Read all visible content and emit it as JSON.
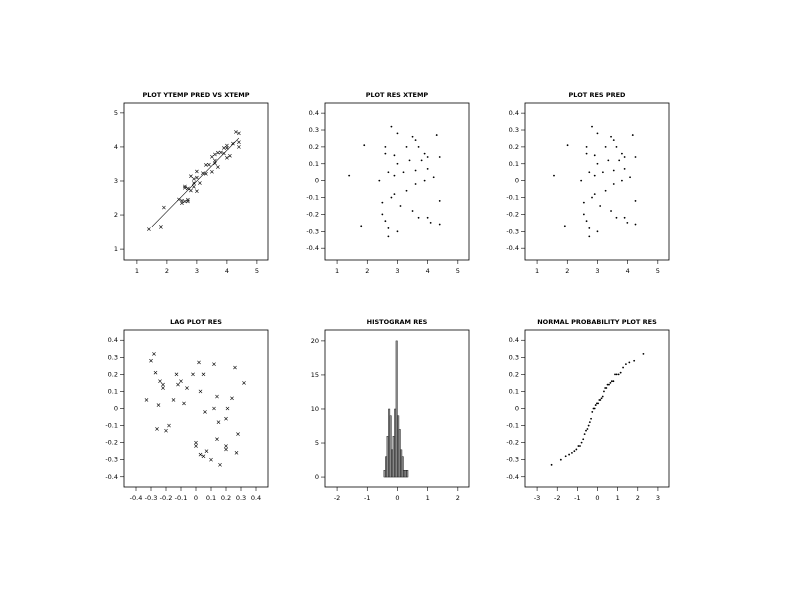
{
  "chart_data": [
    {
      "type": "scatter",
      "title": "PLOT YTEMP PRED VS XTEMP",
      "marker": "x",
      "x": [
        1.4,
        1.8,
        1.9,
        2.4,
        2.5,
        2.5,
        2.6,
        2.6,
        2.6,
        2.7,
        2.7,
        2.7,
        2.8,
        2.9,
        2.9,
        2.9,
        3.0,
        3.0,
        3.0,
        3.1,
        3.2,
        3.3,
        3.3,
        3.4,
        3.5,
        3.6,
        3.6,
        3.6,
        3.7,
        3.7,
        3.8,
        3.9,
        4.0,
        4.0,
        4.0,
        4.1,
        4.2,
        4.3,
        4.4,
        4.4,
        4.4,
        3.5,
        2.8,
        3.9
      ],
      "values": [
        1.59,
        1.65,
        2.22,
        2.46,
        2.35,
        2.42,
        2.84,
        2.4,
        2.8,
        2.4,
        2.78,
        2.45,
        3.14,
        3.06,
        2.83,
        2.94,
        3.1,
        2.7,
        3.28,
        2.94,
        3.23,
        3.47,
        3.21,
        3.48,
        3.71,
        3.78,
        3.6,
        3.52,
        3.83,
        3.41,
        3.84,
        3.81,
        3.68,
        4.04,
        3.97,
        3.74,
        4.1,
        4.44,
        4.0,
        4.14,
        4.4,
        3.27,
        2.72,
        3.97
      ],
      "line_x": [
        1.5,
        4.4
      ],
      "line_values": [
        1.65,
        4.26
      ],
      "xlim": [
        0.57,
        5.37
      ],
      "ylim": [
        0.68,
        5.29
      ],
      "xticks": [
        1,
        2,
        3,
        4,
        5
      ],
      "yticks": [
        1,
        2,
        3,
        4,
        5
      ]
    },
    {
      "type": "scatter",
      "title": "PLOT RES XTEMP",
      "marker": "dot",
      "x": [
        1.4,
        1.8,
        1.9,
        2.4,
        2.5,
        2.5,
        2.6,
        2.6,
        2.6,
        2.7,
        2.7,
        2.7,
        2.8,
        2.9,
        2.9,
        2.9,
        3.0,
        3.0,
        3.0,
        3.1,
        3.2,
        3.3,
        3.3,
        3.4,
        3.5,
        3.6,
        3.6,
        3.6,
        3.7,
        3.7,
        3.8,
        3.9,
        4.0,
        4.0,
        4.0,
        4.1,
        4.2,
        4.3,
        4.4,
        4.4,
        4.4,
        3.5,
        2.8,
        3.9
      ],
      "values": [
        0.03,
        -0.27,
        0.21,
        0.0,
        -0.2,
        -0.13,
        0.2,
        -0.24,
        0.16,
        -0.33,
        0.05,
        -0.28,
        0.32,
        0.15,
        -0.08,
        0.03,
        0.1,
        -0.3,
        0.28,
        -0.15,
        0.05,
        0.2,
        -0.06,
        0.12,
        0.26,
        0.24,
        0.06,
        -0.02,
        0.2,
        -0.22,
        0.12,
        0.0,
        -0.22,
        0.14,
        0.07,
        -0.25,
        0.02,
        0.27,
        -0.26,
        -0.12,
        0.14,
        -0.18,
        -0.1,
        0.16
      ],
      "xlim": [
        0.6,
        5.37
      ],
      "ylim": [
        -0.47,
        0.46
      ],
      "xticks": [
        1,
        2,
        3,
        4,
        5
      ],
      "yticks": [
        -0.4,
        -0.3,
        -0.2,
        -0.1,
        0,
        0.1,
        0.2,
        0.3,
        0.4
      ]
    },
    {
      "type": "scatter",
      "title": "PLOT RES PRED",
      "marker": "dot",
      "x": [
        1.56,
        1.92,
        2.01,
        2.46,
        2.55,
        2.55,
        2.64,
        2.64,
        2.64,
        2.73,
        2.73,
        2.73,
        2.82,
        2.91,
        2.91,
        2.91,
        3.0,
        3.0,
        3.0,
        3.09,
        3.18,
        3.27,
        3.27,
        3.36,
        3.45,
        3.54,
        3.54,
        3.54,
        3.63,
        3.63,
        3.72,
        3.81,
        3.9,
        3.9,
        3.9,
        3.99,
        4.08,
        4.17,
        4.26,
        4.26,
        4.26,
        3.45,
        2.82,
        3.81
      ],
      "values": [
        0.03,
        -0.27,
        0.21,
        0.0,
        -0.2,
        -0.13,
        0.2,
        -0.24,
        0.16,
        -0.33,
        0.05,
        -0.28,
        0.32,
        0.15,
        -0.08,
        0.03,
        0.1,
        -0.3,
        0.28,
        -0.15,
        0.05,
        0.2,
        -0.06,
        0.12,
        0.26,
        0.24,
        0.06,
        -0.02,
        0.2,
        -0.22,
        0.12,
        0.0,
        -0.22,
        0.14,
        0.07,
        -0.25,
        0.02,
        0.27,
        -0.26,
        -0.12,
        0.14,
        -0.18,
        -0.1,
        0.16
      ],
      "xlim": [
        0.6,
        5.37
      ],
      "ylim": [
        -0.47,
        0.46
      ],
      "xticks": [
        1,
        2,
        3,
        4,
        5
      ],
      "yticks": [
        -0.4,
        -0.3,
        -0.2,
        -0.1,
        0,
        0.1,
        0.2,
        0.3,
        0.4
      ]
    },
    {
      "type": "scatter",
      "title": "LAG PLOT RES",
      "marker": "x",
      "x": [
        0.03,
        -0.27,
        0.21,
        0.0,
        -0.2,
        -0.13,
        0.2,
        -0.24,
        0.16,
        -0.33,
        0.05,
        -0.28,
        0.32,
        0.15,
        -0.08,
        0.03,
        0.1,
        -0.3,
        0.28,
        -0.15,
        0.05,
        0.2,
        -0.06,
        0.12,
        0.26,
        0.24,
        0.06,
        -0.02,
        0.2,
        -0.22,
        0.12,
        0.0,
        -0.22,
        0.14,
        0.07,
        -0.25,
        0.02,
        0.27,
        -0.26,
        -0.12,
        0.14,
        -0.18,
        -0.1
      ],
      "values": [
        -0.27,
        0.21,
        0.0,
        -0.2,
        -0.13,
        0.2,
        -0.24,
        0.16,
        -0.33,
        0.05,
        -0.28,
        0.32,
        0.15,
        -0.08,
        0.03,
        0.1,
        -0.3,
        0.28,
        -0.15,
        0.05,
        0.2,
        -0.06,
        0.12,
        0.26,
        0.24,
        0.06,
        -0.02,
        0.2,
        -0.22,
        0.12,
        0.0,
        -0.22,
        0.14,
        0.07,
        -0.25,
        0.02,
        0.27,
        -0.26,
        -0.12,
        0.14,
        -0.18,
        -0.1,
        0.16
      ],
      "xlim": [
        -0.48,
        0.48
      ],
      "ylim": [
        -0.46,
        0.46
      ],
      "xticks": [
        -0.4,
        -0.3,
        -0.2,
        -0.1,
        0,
        0.1,
        0.2,
        0.3,
        0.4
      ],
      "yticks": [
        -0.4,
        -0.3,
        -0.2,
        -0.1,
        0,
        0.1,
        0.2,
        0.3,
        0.4
      ]
    },
    {
      "type": "histogram",
      "title": "HISTOGRAM RES",
      "bins": [
        -0.45,
        -0.4,
        -0.35,
        -0.3,
        -0.25,
        -0.2,
        -0.15,
        -0.1,
        -0.05,
        0,
        0.05,
        0.1,
        0.15,
        0.2,
        0.25,
        0.3,
        0.35
      ],
      "values": [
        1,
        3,
        6,
        10,
        9,
        4,
        6,
        10,
        20,
        9,
        7,
        4,
        3,
        1,
        1,
        1
      ],
      "xlim": [
        -2.4,
        2.37
      ],
      "ylim": [
        -1.46,
        21.6
      ],
      "xticks": [
        -2,
        -1,
        0,
        1,
        2
      ],
      "yticks": [
        0,
        5,
        10,
        15,
        20
      ]
    },
    {
      "type": "scatter",
      "title": "NORMAL PROBABILITY PLOT RES",
      "marker": "dot",
      "x": [
        -2.28,
        -1.82,
        -1.58,
        -1.41,
        -1.27,
        -1.15,
        -1.05,
        -0.95,
        -0.87,
        -0.79,
        -0.71,
        -0.64,
        -0.57,
        -0.5,
        -0.44,
        -0.38,
        -0.32,
        -0.26,
        -0.2,
        -0.14,
        -0.09,
        -0.03,
        0.03,
        0.09,
        0.14,
        0.2,
        0.26,
        0.32,
        0.38,
        0.44,
        0.5,
        0.57,
        0.64,
        0.71,
        0.79,
        0.87,
        0.95,
        1.05,
        1.15,
        1.27,
        1.41,
        1.58,
        1.82,
        2.28
      ],
      "values": [
        -0.33,
        -0.3,
        -0.28,
        -0.27,
        -0.26,
        -0.25,
        -0.24,
        -0.22,
        -0.22,
        -0.2,
        -0.18,
        -0.15,
        -0.13,
        -0.12,
        -0.1,
        -0.08,
        -0.06,
        -0.02,
        0.0,
        0.0,
        0.02,
        0.03,
        0.03,
        0.05,
        0.05,
        0.06,
        0.07,
        0.1,
        0.12,
        0.12,
        0.14,
        0.14,
        0.15,
        0.16,
        0.16,
        0.2,
        0.2,
        0.2,
        0.21,
        0.24,
        0.26,
        0.27,
        0.28,
        0.32
      ],
      "xlim": [
        -3.6,
        3.55
      ],
      "ylim": [
        -0.46,
        0.46
      ],
      "xticks": [
        -3,
        -2,
        -1,
        0,
        1,
        2,
        3
      ],
      "yticks": [
        -0.4,
        -0.3,
        -0.2,
        -0.1,
        0,
        0.1,
        0.2,
        0.3,
        0.4
      ]
    }
  ]
}
